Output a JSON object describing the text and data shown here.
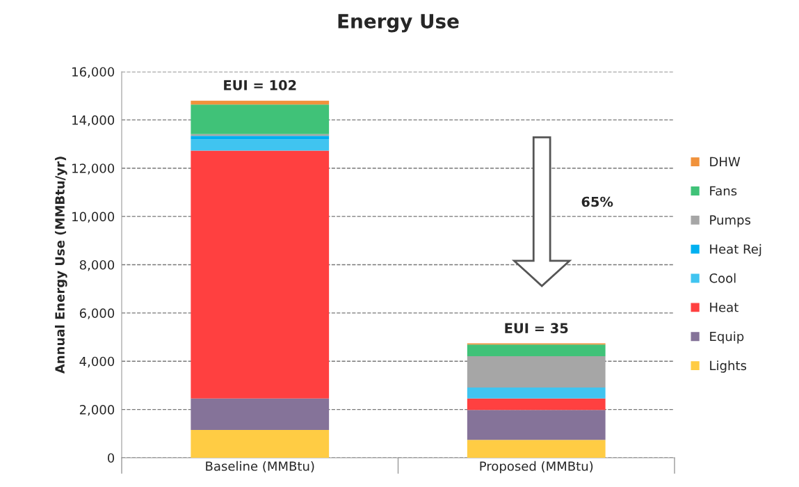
{
  "chart_data": {
    "type": "bar",
    "title": "Energy Use",
    "ylabel": "Annual Energy Use (MMBtu/yr)",
    "stacked": true,
    "categories": [
      "Baseline (MMBtu)",
      "Proposed (MMBtu)"
    ],
    "series": [
      {
        "name": "Lights",
        "color": "#ffcc44",
        "values": [
          1150,
          740
        ]
      },
      {
        "name": "Equip",
        "color": "#857399",
        "values": [
          1310,
          1240
        ]
      },
      {
        "name": "Heat",
        "color": "#ff4040",
        "values": [
          10270,
          480
        ]
      },
      {
        "name": "Cool",
        "color": "#40c4f0",
        "values": [
          460,
          450
        ]
      },
      {
        "name": "Heat Rej",
        "color": "#00b0f0",
        "values": [
          150,
          0
        ]
      },
      {
        "name": "Pumps",
        "color": "#a6a6a6",
        "values": [
          70,
          1300
        ]
      },
      {
        "name": "Fans",
        "color": "#40c278",
        "values": [
          1230,
          480
        ]
      },
      {
        "name": "DHW",
        "color": "#f0923c",
        "values": [
          160,
          50
        ]
      }
    ],
    "ylim": [
      0,
      16000
    ],
    "yticks": [
      0,
      {
        "value": 2000,
        "label": "2,000"
      },
      {
        "value": 4000,
        "label": "4,000"
      },
      {
        "value": 6000,
        "label": "6,000"
      },
      {
        "value": 8000,
        "label": "8,000"
      },
      {
        "value": 10000,
        "label": "10,000"
      },
      {
        "value": 12000,
        "label": "12,000"
      },
      {
        "value": 14000,
        "label": "14,000"
      },
      {
        "value": 16000,
        "label": "16,000"
      }
    ],
    "grid": "y",
    "legend": "right",
    "annotations": [
      {
        "text": "EUI = 102",
        "x": "Baseline (MMBtu)",
        "y": 14800
      },
      {
        "text": "EUI = 35",
        "x": "Proposed (MMBtu)",
        "y": 4730
      },
      "65%"
    ]
  }
}
